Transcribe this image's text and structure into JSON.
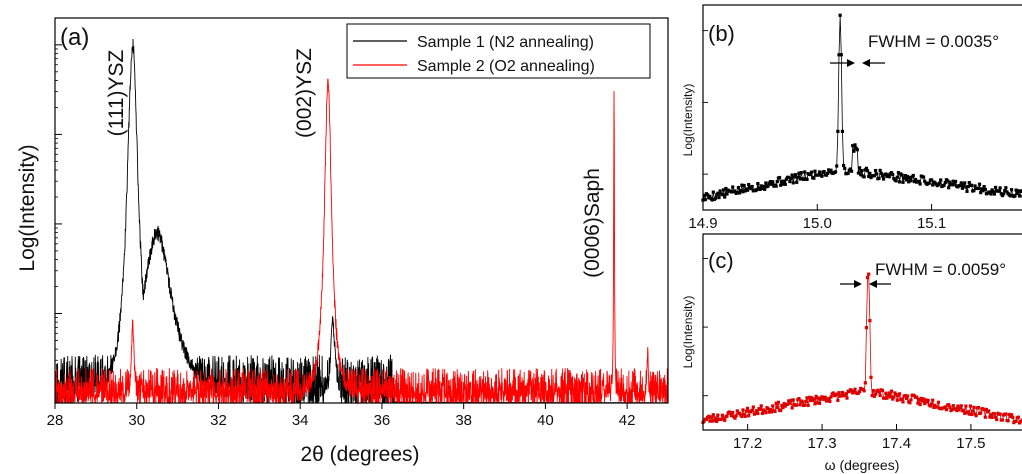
{
  "chart_data": [
    {
      "panel": "(a)",
      "type": "line",
      "xlabel": "2θ (degrees)",
      "ylabel": "Log(Intensity)",
      "xlim": [
        28,
        43
      ],
      "log_y": true,
      "ylim_decades": [
        0,
        4.3
      ],
      "xticks": [
        28,
        30,
        32,
        34,
        36,
        38,
        40,
        42
      ],
      "legend": {
        "placement": "top-right"
      },
      "series": [
        {
          "name": "Sample 1 (N2 annealing)",
          "color": "#000000",
          "peaks": [
            {
              "x": 29.9,
              "height": 4.0,
              "width": 0.17
            },
            {
              "x": 30.5,
              "height": 1.9,
              "width": 0.45
            },
            {
              "x": 34.8,
              "height": 0.9,
              "width": 0.07
            }
          ],
          "noise_range": [
            28,
            36.3
          ],
          "noise_level": 0.45
        },
        {
          "name": "Sample 2 (O2 annealing)",
          "color": "#ff0000",
          "peaks": [
            {
              "x": 34.68,
              "height": 3.6,
              "width": 0.11
            },
            {
              "x": 41.68,
              "height": 3.5,
              "width": 0.012
            },
            {
              "x": 29.9,
              "height": 0.9,
              "width": 0.04
            },
            {
              "x": 42.5,
              "height": 0.6,
              "width": 0.02
            }
          ],
          "noise_range": [
            28,
            43
          ],
          "noise_level": 0.3
        }
      ],
      "annotations": [
        {
          "text": "(111)YSZ",
          "x": 29.5
        },
        {
          "text": "(002)YSZ",
          "x": 34.25
        },
        {
          "text": "(0006)Saph",
          "x": 41.3
        }
      ]
    },
    {
      "panel": "(b)",
      "type": "line",
      "ylabel": "Log(Intensity)",
      "xlim": [
        14.9,
        15.18
      ],
      "xticks": [
        14.9,
        15.0,
        15.1
      ],
      "log_y": true,
      "series": [
        {
          "color": "#000000",
          "marker": "square",
          "peak_center": 15.02,
          "fwhm": 0.0035,
          "peak_height": 1.9,
          "background": [
            [
              14.9,
              0.12
            ],
            [
              15.02,
              0.4
            ],
            [
              15.18,
              0.15
            ]
          ]
        }
      ],
      "annotations": [
        {
          "text": "FWHM = 0.0035°"
        }
      ]
    },
    {
      "panel": "(c)",
      "type": "line",
      "xlabel": "ω (degrees)",
      "ylabel": "Log(Intensity)",
      "xlim": [
        17.14,
        17.57
      ],
      "xticks": [
        17.2,
        17.3,
        17.4,
        17.5
      ],
      "log_y": true,
      "series": [
        {
          "color": "#dd0000",
          "marker": "square",
          "peak_center": 17.362,
          "fwhm": 0.0059,
          "peak_height": 1.65,
          "background": [
            [
              17.14,
              0.1
            ],
            [
              17.36,
              0.4
            ],
            [
              17.57,
              0.1
            ]
          ]
        }
      ],
      "annotations": [
        {
          "text": "FWHM = 0.0059°"
        }
      ]
    }
  ]
}
